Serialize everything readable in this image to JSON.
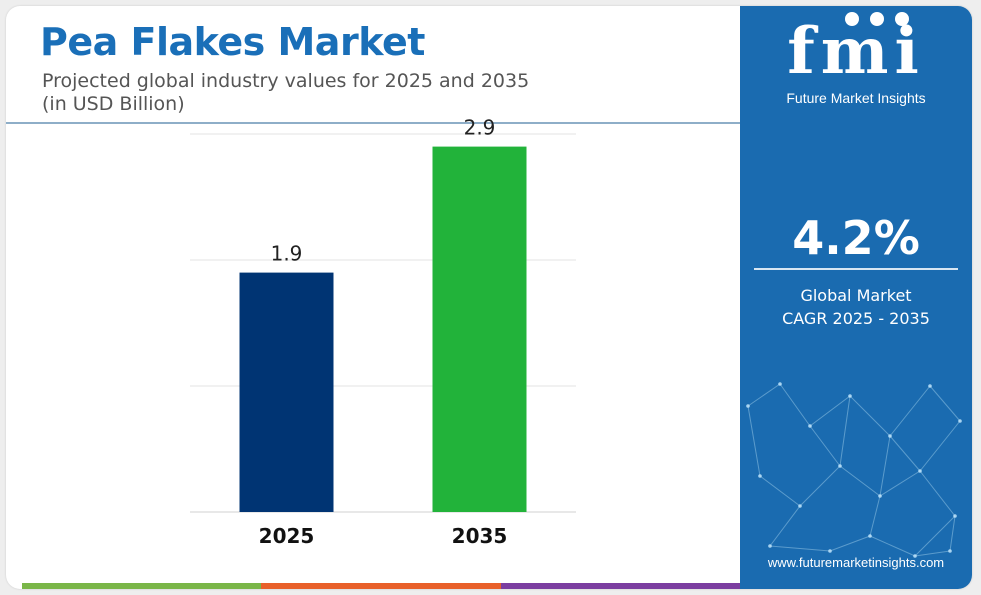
{
  "header": {
    "title": "Pea Flakes Market",
    "subtitle_line1": "Projected global industry values for 2025 and 2035",
    "subtitle_line2": "(in USD Billion)"
  },
  "chart_data": {
    "type": "bar",
    "categories": [
      "2025",
      "2035"
    ],
    "values": [
      1.9,
      2.9
    ],
    "data_labels": [
      "1.9",
      "2.9"
    ],
    "bar_colors": [
      "#003473",
      "#22b33a"
    ],
    "ylim": [
      0,
      3.0
    ],
    "gridlines": [
      1,
      2,
      3
    ],
    "grid": true,
    "title": "",
    "xlabel": "",
    "ylabel": ""
  },
  "sidebar": {
    "logo_text": "fmi",
    "logo_subtext": "Future Market Insights",
    "cagr_value": "4.2%",
    "cagr_label_line1": "Global Market",
    "cagr_label_line2": "CAGR 2025 - 2035",
    "website": "www.futuremarketinsights.com",
    "background_color": "#1a6bb0"
  },
  "bottom_strip_colors": [
    "#7ab648",
    "#e8602a",
    "#7b3ea0"
  ]
}
